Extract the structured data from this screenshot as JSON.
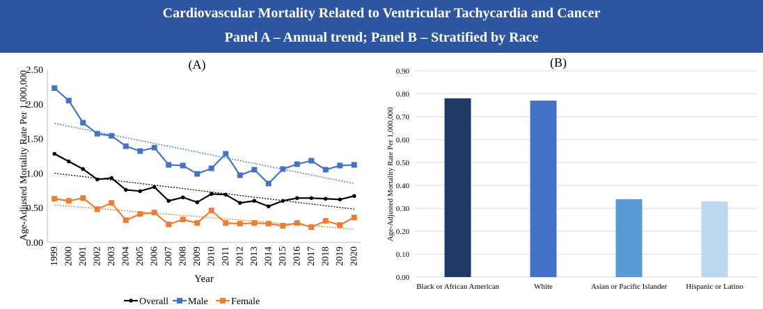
{
  "header": {
    "line1": "Cardiovascular Mortality Related to Ventricular Tachycardia and Cancer",
    "line2": "Panel A – Annual trend; Panel B – Stratified by Race"
  },
  "colors": {
    "banner": "#2e56a0",
    "overall": "#000000",
    "male": "#4472c4",
    "female": "#ed7d31",
    "race_bars": [
      "#203864",
      "#4472c4",
      "#5b9bd5",
      "#bdd7ee"
    ]
  },
  "chart_data": [
    {
      "type": "line",
      "panel_label": "(A)",
      "xlabel": "Year",
      "ylabel": "Age-Adjusted Mortality Rate Per 1,000,000",
      "ylim": [
        0,
        2.5
      ],
      "y_ticks": [
        "0.00",
        "0.50",
        "1.00",
        "1.50",
        "2.00",
        "2.50"
      ],
      "x": [
        "1999",
        "2000",
        "2001",
        "2002",
        "2003",
        "2004",
        "2005",
        "2006",
        "2007",
        "2008",
        "2009",
        "2010",
        "2011",
        "2012",
        "2013",
        "2014",
        "2015",
        "2016",
        "2017",
        "2018",
        "2019",
        "2020"
      ],
      "series": [
        {
          "name": "Overall",
          "marker": "circle",
          "values": [
            1.28,
            1.17,
            1.06,
            0.91,
            0.93,
            0.76,
            0.74,
            0.8,
            0.6,
            0.65,
            0.58,
            0.7,
            0.69,
            0.57,
            0.6,
            0.52,
            0.6,
            0.64,
            0.64,
            0.63,
            0.62,
            0.67
          ],
          "trend": [
            1.0,
            0.48
          ]
        },
        {
          "name": "Male",
          "marker": "square",
          "values": [
            2.23,
            2.05,
            1.73,
            1.57,
            1.54,
            1.39,
            1.32,
            1.37,
            1.12,
            1.11,
            0.99,
            1.07,
            1.28,
            0.97,
            1.05,
            0.85,
            1.06,
            1.13,
            1.18,
            1.05,
            1.11,
            1.12
          ],
          "trend": [
            1.72,
            0.85
          ]
        },
        {
          "name": "Female",
          "marker": "square",
          "values": [
            0.63,
            0.6,
            0.64,
            0.48,
            0.57,
            0.32,
            0.41,
            0.43,
            0.26,
            0.33,
            0.28,
            0.46,
            0.28,
            0.27,
            0.28,
            0.27,
            0.24,
            0.28,
            0.22,
            0.31,
            0.25,
            0.36
          ],
          "trend": [
            0.54,
            0.19
          ]
        }
      ],
      "legend": [
        "Overall",
        "Male",
        "Female"
      ],
      "legend_position": "bottom"
    },
    {
      "type": "bar",
      "panel_label": "(B)",
      "xlabel": "",
      "ylabel": "Age-Adjusted Mortality Rate Per 1,000,000",
      "ylim": [
        0,
        0.9
      ],
      "y_ticks": [
        "0.00",
        "0.10",
        "0.20",
        "0.30",
        "0.40",
        "0.50",
        "0.60",
        "0.70",
        "0.80",
        "0.90"
      ],
      "categories": [
        "Black or African American",
        "White",
        "Asian or Pacific Islander",
        "Hispanic or Latino"
      ],
      "values": [
        0.78,
        0.77,
        0.34,
        0.33
      ]
    }
  ]
}
